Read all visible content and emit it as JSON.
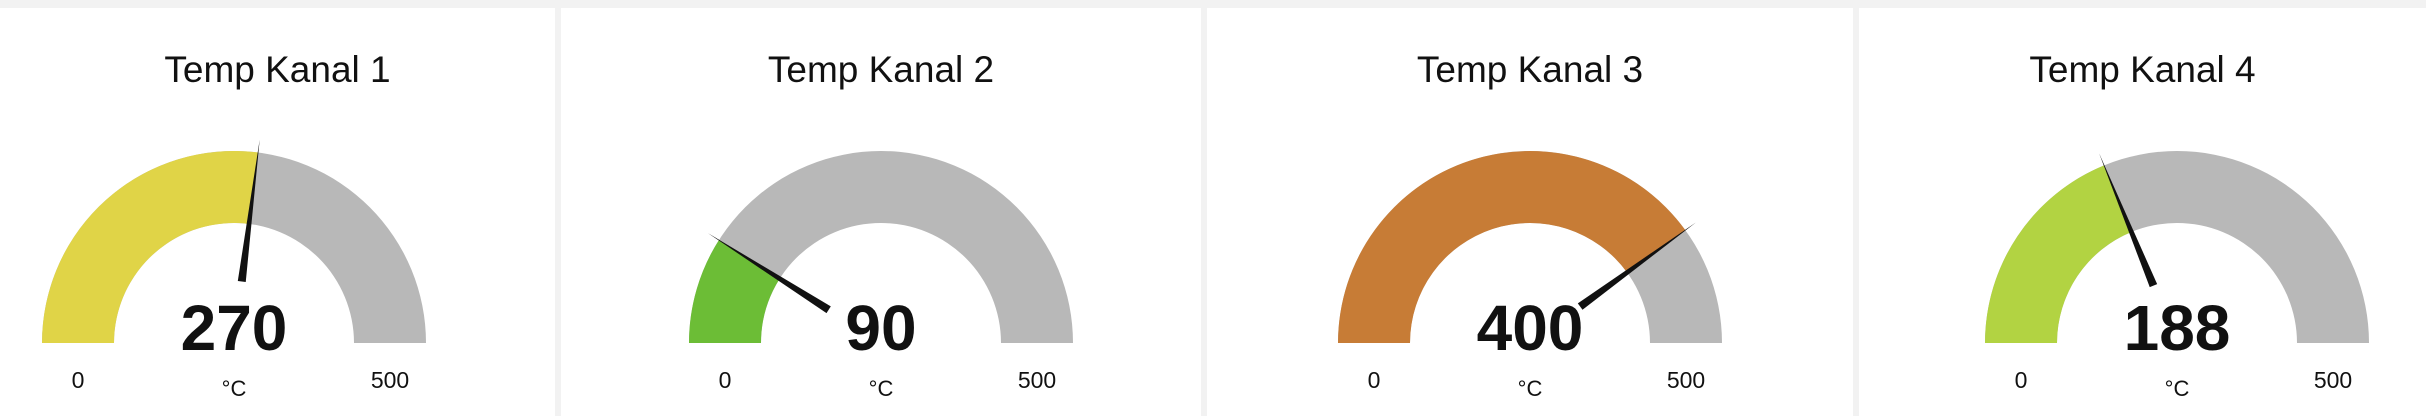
{
  "gauges": [
    {
      "title": "Temp Kanal 1",
      "value": 270,
      "value_text": "270",
      "min": 0,
      "min_text": "0",
      "max": 500,
      "max_text": "500",
      "unit": "°C",
      "fill_color": "#e0d447"
    },
    {
      "title": "Temp Kanal 2",
      "value": 90,
      "value_text": "90",
      "min": 0,
      "min_text": "0",
      "max": 500,
      "max_text": "500",
      "unit": "°C",
      "fill_color": "#6cbd36"
    },
    {
      "title": "Temp Kanal 3",
      "value": 400,
      "value_text": "400",
      "min": 0,
      "min_text": "0",
      "max": 500,
      "max_text": "500",
      "unit": "°C",
      "fill_color": "#c77c36"
    },
    {
      "title": "Temp Kanal 4",
      "value": 188,
      "value_text": "188",
      "min": 0,
      "min_text": "0",
      "max": 500,
      "max_text": "500",
      "unit": "°C",
      "fill_color": "#b2d342"
    }
  ],
  "colors": {
    "track": "#b8b8b8",
    "needle": "#111111",
    "card_background": "#ffffff",
    "page_background": "#f2f2f2"
  }
}
